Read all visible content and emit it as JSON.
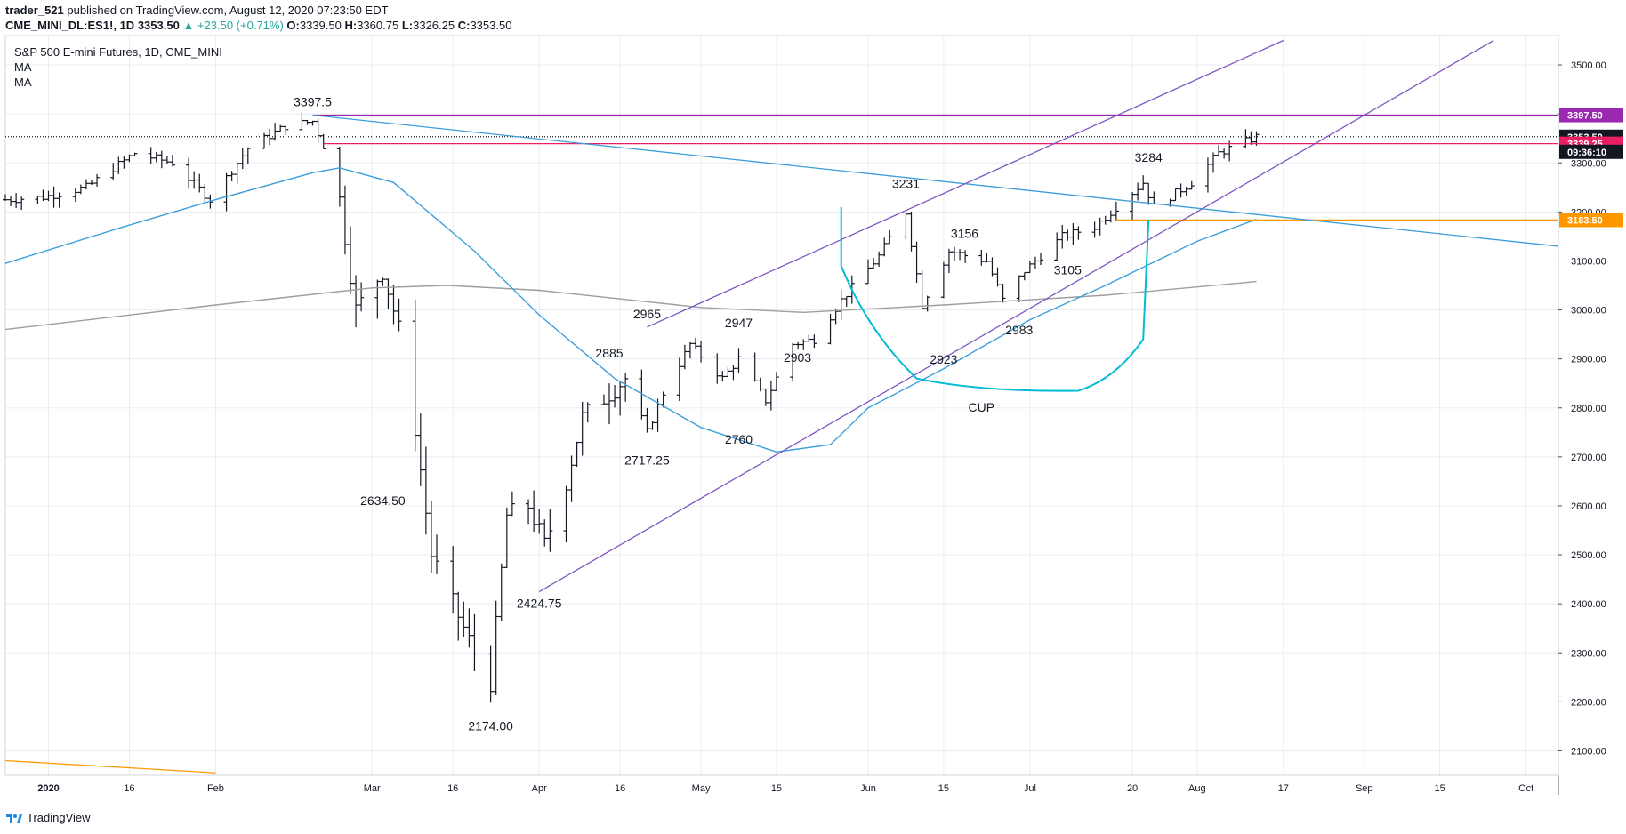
{
  "header": {
    "publisher": "trader_521",
    "published_text": "published on TradingView.com, August 12, 2020 07:23:50 EDT",
    "symbol": "CME_MINI_DL:ES1!, 1D",
    "last_price": "3353.50",
    "change": "▲ +23.50 (+0.71%)",
    "ohlc": {
      "O": "3339.50",
      "H": "3360.75",
      "L": "3326.25",
      "C": "3353.50"
    }
  },
  "legend": {
    "title": "S&P 500 E-mini Futures, 1D, CME_MINI",
    "ma1": "MA",
    "ma2": "MA"
  },
  "footer": {
    "brand": "TradingView",
    "logo_icon": "tradingview-logo-icon"
  },
  "colors": {
    "bars": "#131722",
    "grid": "#e8edf3",
    "ma_blue": "#3c9fdb",
    "ma_gray": "#9e9e9e",
    "channel": "#7e57c2",
    "resistance": "#9c27b0",
    "support_pink": "#e91e63",
    "support_orange": "#ff9800",
    "cup": "#00bcd4",
    "last_price_bg": "#131722"
  },
  "chart_data": {
    "type": "ohlc",
    "y_axis": {
      "ylim": [
        2050,
        3560
      ],
      "ticks": [
        2100,
        2200,
        2300,
        2400,
        2500,
        2600,
        2700,
        2800,
        2900,
        3000,
        3100,
        3200,
        3300,
        3400,
        3500
      ],
      "tick_labels": [
        "2100.00",
        "2200.00",
        "2300.00",
        "2400.00",
        "2500.00",
        "2600.00",
        "2700.00",
        "2800.00",
        "2900.00",
        "3000.00",
        "3100.00",
        "3200.00",
        "3300.00",
        "3400.00",
        "3500.00"
      ]
    },
    "x_axis": {
      "start": "2019-12-24",
      "end": "2020-10-07",
      "ticks": [
        {
          "date": "2020-01-01",
          "label": "2020",
          "bold": true
        },
        {
          "date": "2020-01-16",
          "label": "16"
        },
        {
          "date": "2020-02-01",
          "label": "Feb"
        },
        {
          "date": "2020-03-01",
          "label": "Mar"
        },
        {
          "date": "2020-03-16",
          "label": "16"
        },
        {
          "date": "2020-04-01",
          "label": "Apr"
        },
        {
          "date": "2020-04-16",
          "label": "16"
        },
        {
          "date": "2020-05-01",
          "label": "May"
        },
        {
          "date": "2020-05-15",
          "label": "15"
        },
        {
          "date": "2020-06-01",
          "label": "Jun"
        },
        {
          "date": "2020-06-15",
          "label": "15"
        },
        {
          "date": "2020-07-01",
          "label": "Jul"
        },
        {
          "date": "2020-07-20",
          "label": "20"
        },
        {
          "date": "2020-08-01",
          "label": "Aug"
        },
        {
          "date": "2020-08-17",
          "label": "17"
        },
        {
          "date": "2020-09-01",
          "label": "Sep"
        },
        {
          "date": "2020-09-15",
          "label": "15"
        },
        {
          "date": "2020-10-01",
          "label": "Oct"
        }
      ]
    },
    "anchors": [
      [
        "2019-12-24",
        3225
      ],
      [
        "2019-12-31",
        3230
      ],
      [
        "2020-01-08",
        3250
      ],
      [
        "2020-01-17",
        3320
      ],
      [
        "2020-01-24",
        3300
      ],
      [
        "2020-01-31",
        3225
      ],
      [
        "2020-02-07",
        3330
      ],
      [
        "2020-02-14",
        3375
      ],
      [
        "2020-02-19",
        3385
      ],
      [
        "2020-02-21",
        3335
      ],
      [
        "2020-02-24",
        3225
      ],
      [
        "2020-02-27",
        3000
      ],
      [
        "2020-03-03",
        3080
      ],
      [
        "2020-03-06",
        2960
      ],
      [
        "2020-03-09",
        2760
      ],
      [
        "2020-03-12",
        2500
      ],
      [
        "2020-03-16",
        2400
      ],
      [
        "2020-03-20",
        2300
      ],
      [
        "2020-03-23",
        2240
      ],
      [
        "2020-03-26",
        2580
      ],
      [
        "2020-03-30",
        2600
      ],
      [
        "2020-04-02",
        2520
      ],
      [
        "2020-04-06",
        2650
      ],
      [
        "2020-04-09",
        2780
      ],
      [
        "2020-04-14",
        2830
      ],
      [
        "2020-04-17",
        2860
      ],
      [
        "2020-04-21",
        2750
      ],
      [
        "2020-04-24",
        2830
      ],
      [
        "2020-04-29",
        2930
      ],
      [
        "2020-05-05",
        2860
      ],
      [
        "2020-05-08",
        2900
      ],
      [
        "2020-05-13",
        2815
      ],
      [
        "2020-05-18",
        2930
      ],
      [
        "2020-05-22",
        2940
      ],
      [
        "2020-05-27",
        3020
      ],
      [
        "2020-06-03",
        3110
      ],
      [
        "2020-06-08",
        3200
      ],
      [
        "2020-06-11",
        3010
      ],
      [
        "2020-06-16",
        3120
      ],
      [
        "2020-06-23",
        3100
      ],
      [
        "2020-06-26",
        3020
      ],
      [
        "2020-06-30",
        3080
      ],
      [
        "2020-07-07",
        3150
      ],
      [
        "2020-07-13",
        3170
      ],
      [
        "2020-07-17",
        3210
      ],
      [
        "2020-07-22",
        3260
      ],
      [
        "2020-07-24",
        3210
      ],
      [
        "2020-07-31",
        3260
      ],
      [
        "2020-08-05",
        3320
      ],
      [
        "2020-08-12",
        3353
      ]
    ],
    "price_labels": [
      {
        "date": "2020-02-19",
        "price": 3397.5,
        "text": "3397.5",
        "pos": "above"
      },
      {
        "date": "2020-03-03",
        "price": 2634.5,
        "text": "2634.50",
        "pos": "below"
      },
      {
        "date": "2020-03-23",
        "price": 2174,
        "text": "2174.00",
        "pos": "below"
      },
      {
        "date": "2020-04-01",
        "price": 2424.75,
        "text": "2424.75",
        "pos": "below"
      },
      {
        "date": "2020-04-14",
        "price": 2885,
        "text": "2885",
        "pos": "above"
      },
      {
        "date": "2020-04-21",
        "price": 2717.25,
        "text": "2717.25",
        "pos": "below"
      },
      {
        "date": "2020-04-21",
        "price": 2965,
        "text": "2965",
        "pos": "above"
      },
      {
        "date": "2020-05-08",
        "price": 2947,
        "text": "2947",
        "pos": "above"
      },
      {
        "date": "2020-05-08",
        "price": 2760,
        "text": "2760",
        "pos": "below"
      },
      {
        "date": "2020-05-15",
        "price": 2903,
        "text": "2903",
        "pos": "right"
      },
      {
        "date": "2020-06-08",
        "price": 3231,
        "text": "3231",
        "pos": "above"
      },
      {
        "date": "2020-06-15",
        "price": 3156,
        "text": "3156",
        "pos": "right"
      },
      {
        "date": "2020-06-15",
        "price": 2923,
        "text": "2923",
        "pos": "below"
      },
      {
        "date": "2020-06-29",
        "price": 2983,
        "text": "2983",
        "pos": "below"
      },
      {
        "date": "2020-07-08",
        "price": 3105,
        "text": "3105",
        "pos": "below"
      },
      {
        "date": "2020-07-23",
        "price": 3284,
        "text": "3284",
        "pos": "above"
      },
      {
        "date": "2020-06-22",
        "price": 2825,
        "text": "CUP",
        "pos": "below"
      }
    ],
    "price_tags": [
      {
        "price": 3397.5,
        "text": "3397.50",
        "color": "#9c27b0"
      },
      {
        "price": 3353.5,
        "text": "3353.50",
        "color": "#131722"
      },
      {
        "price": 3339.25,
        "text": "3339.25",
        "color": "#e91e63"
      },
      {
        "price": 3183.5,
        "text": "3183.50",
        "color": "#ff9800"
      }
    ],
    "countdown": "09:36:10",
    "lines": [
      {
        "name": "resistance-line",
        "from": [
          "2020-02-19",
          3397.5
        ],
        "to": [
          "2020-10-07",
          3397.5
        ],
        "color": "#9c27b0"
      },
      {
        "name": "support-pink-line",
        "from": [
          "2020-02-21",
          3339.25
        ],
        "to": [
          "2020-10-07",
          3339.25
        ],
        "color": "#e91e63"
      },
      {
        "name": "last-price-line",
        "from": [
          "2019-12-24",
          3353.5
        ],
        "to": [
          "2020-10-07",
          3353.5
        ],
        "color": "#131722",
        "dotted": true
      },
      {
        "name": "orange-support-line",
        "from": [
          "2020-07-17",
          3183.5
        ],
        "to": [
          "2020-10-07",
          3183.5
        ],
        "color": "#ff9800"
      },
      {
        "name": "downtrend-line",
        "from": [
          "2020-02-19",
          3397.5
        ],
        "to": [
          "2020-10-07",
          3130
        ],
        "color": "#3c9fdb"
      },
      {
        "name": "channel-upper-line",
        "from": [
          "2020-04-21",
          2965
        ],
        "to": [
          "2020-08-17",
          3550
        ],
        "color": "#7e57c2"
      },
      {
        "name": "channel-lower-line",
        "from": [
          "2020-04-01",
          2424.75
        ],
        "to": [
          "2020-09-25",
          3550
        ],
        "color": "#7e57c2"
      },
      {
        "name": "old-orange-line",
        "from": [
          "2019-12-24",
          2080
        ],
        "to": [
          "2020-02-01",
          2055
        ],
        "color": "#ff9800"
      }
    ],
    "ma_blue": [
      [
        "2019-12-24",
        3095
      ],
      [
        "2020-01-15",
        3170
      ],
      [
        "2020-02-01",
        3225
      ],
      [
        "2020-02-19",
        3280
      ],
      [
        "2020-02-24",
        3290
      ],
      [
        "2020-03-05",
        3260
      ],
      [
        "2020-03-20",
        3120
      ],
      [
        "2020-04-01",
        2990
      ],
      [
        "2020-04-15",
        2860
      ],
      [
        "2020-05-01",
        2760
      ],
      [
        "2020-05-15",
        2710
      ],
      [
        "2020-05-25",
        2725
      ],
      [
        "2020-06-01",
        2800
      ],
      [
        "2020-06-15",
        2880
      ],
      [
        "2020-07-01",
        2980
      ],
      [
        "2020-07-15",
        3050
      ],
      [
        "2020-08-01",
        3140
      ],
      [
        "2020-08-12",
        3185
      ]
    ],
    "ma_gray": [
      [
        "2019-12-24",
        2960
      ],
      [
        "2020-02-01",
        3010
      ],
      [
        "2020-03-01",
        3045
      ],
      [
        "2020-03-15",
        3050
      ],
      [
        "2020-04-01",
        3040
      ],
      [
        "2020-05-01",
        3005
      ],
      [
        "2020-05-20",
        2995
      ],
      [
        "2020-06-15",
        3010
      ],
      [
        "2020-07-15",
        3030
      ],
      [
        "2020-08-12",
        3058
      ]
    ],
    "cup": [
      [
        "2020-05-27",
        3210
      ],
      [
        "2020-05-27",
        3090
      ],
      [
        "2020-06-01",
        2955
      ],
      [
        "2020-06-10",
        2860
      ],
      [
        "2020-06-22",
        2832
      ],
      [
        "2020-07-10",
        2835
      ],
      [
        "2020-07-17",
        2860
      ],
      [
        "2020-07-22",
        2940
      ],
      [
        "2020-07-23",
        3185
      ]
    ]
  }
}
